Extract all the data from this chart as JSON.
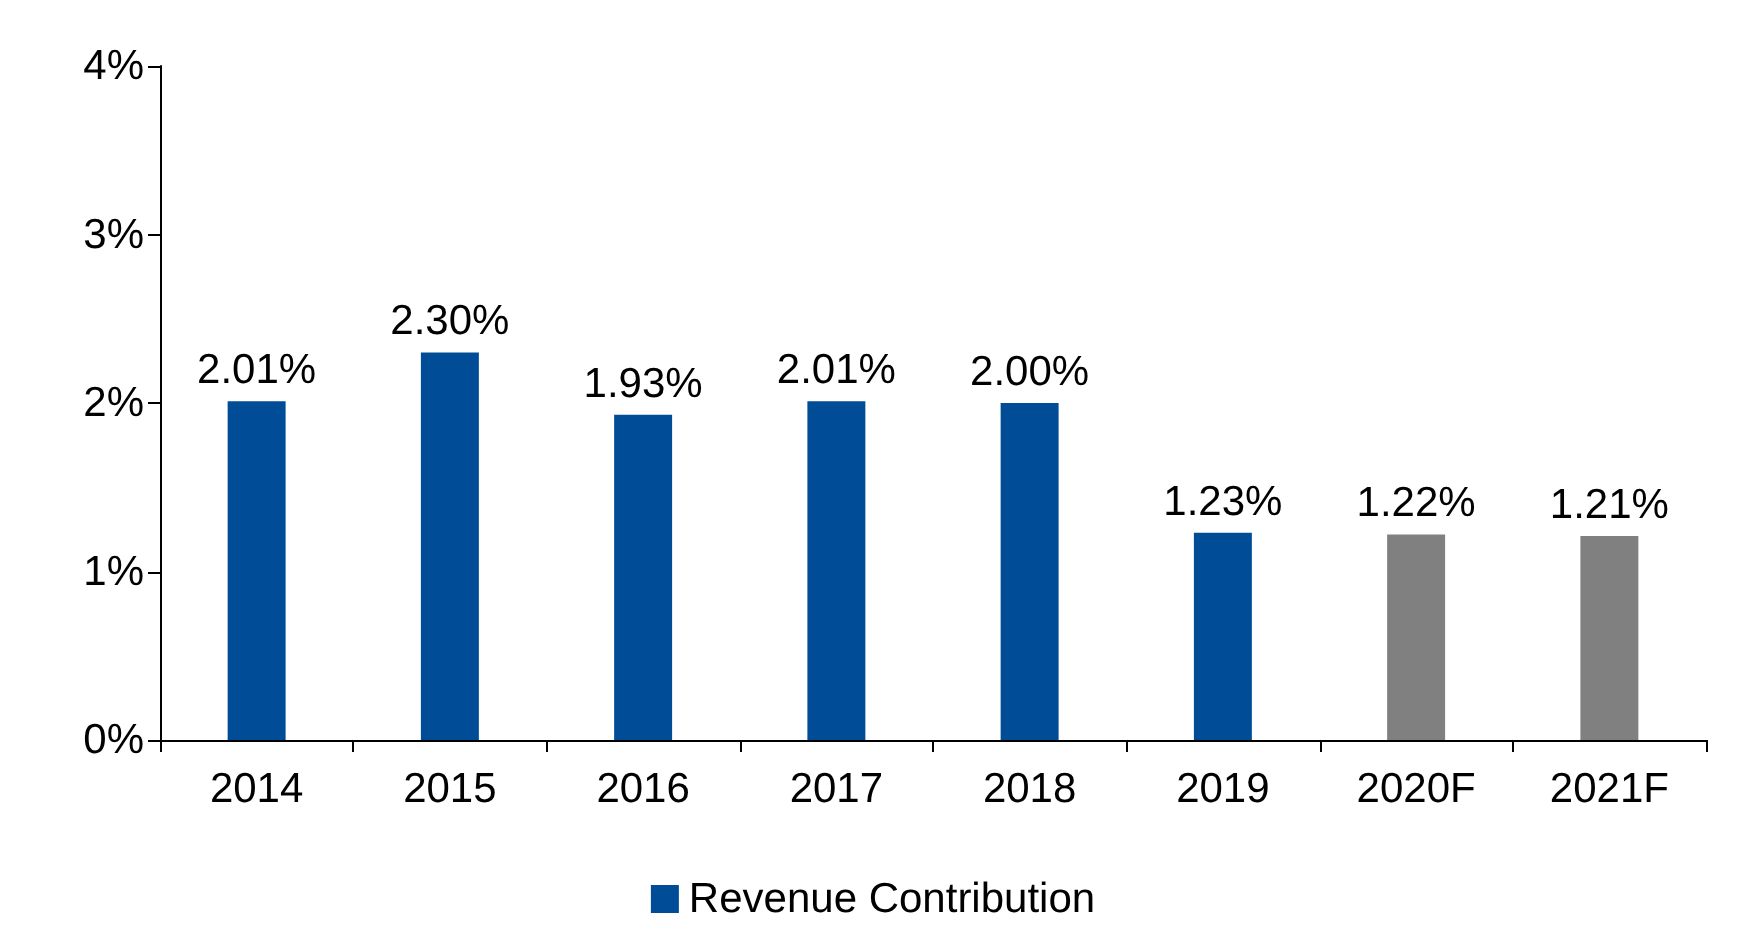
{
  "chart_data": {
    "type": "bar",
    "categories": [
      "2014",
      "2015",
      "2016",
      "2017",
      "2018",
      "2019",
      "2020F",
      "2021F"
    ],
    "series": [
      {
        "name": "Revenue Contribution",
        "color": "#004c97",
        "colors": [
          "#004c97",
          "#004c97",
          "#004c97",
          "#004c97",
          "#004c97",
          "#004c97",
          "#808080",
          "#808080"
        ],
        "values": [
          2.01,
          2.3,
          1.93,
          2.01,
          2.0,
          1.23,
          1.22,
          1.21
        ],
        "value_labels": [
          "2.01%",
          "2.30%",
          "1.93%",
          "2.01%",
          "2.00%",
          "1.23%",
          "1.22%",
          "1.21%"
        ]
      }
    ],
    "ylim": [
      0,
      4
    ],
    "yticks": [
      {
        "value": 0,
        "label": "0%"
      },
      {
        "value": 1,
        "label": "1%"
      },
      {
        "value": 2,
        "label": "2%"
      },
      {
        "value": 3,
        "label": "3%"
      },
      {
        "value": 4,
        "label": "4%"
      }
    ],
    "grid": false,
    "legend": "bottom"
  }
}
